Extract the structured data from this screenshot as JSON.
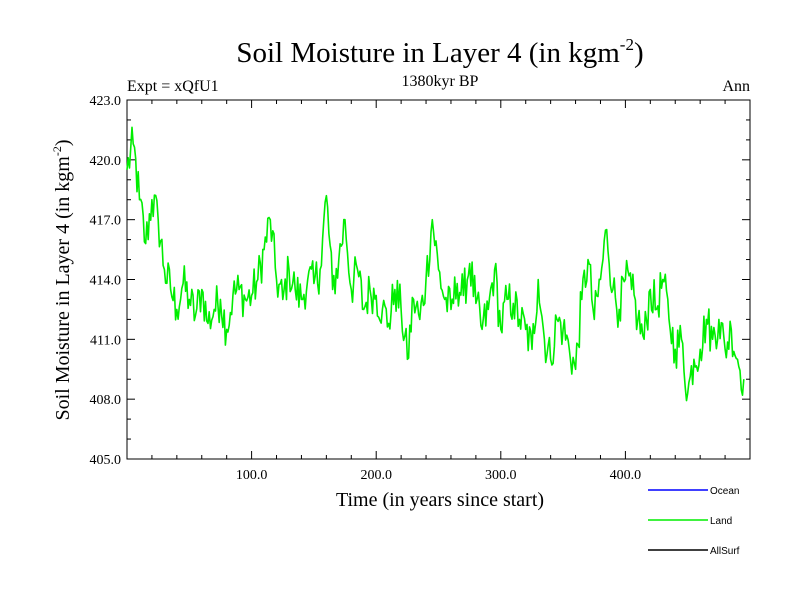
{
  "header": {
    "title": "Soil Moisture in Layer 4 (in kgm",
    "title_sup": "-2",
    "title_close": ")",
    "left": "Expt = xQfU1",
    "center": "1380kyr BP",
    "right": "Ann"
  },
  "chart_data": {
    "type": "line",
    "title": "Soil Moisture in Layer 4 (in kgm-2)",
    "xlabel": "Time (in years since start)",
    "ylabel": "Soil Moisture in Layer 4 (in kgm-2)",
    "ylabel_main": "Soil Moisture in Layer 4 (in kgm",
    "ylabel_sup": "-2",
    "ylabel_close": ")",
    "xlim": [
      0,
      500
    ],
    "ylim": [
      405,
      423
    ],
    "xticks": [
      100,
      200,
      300,
      400
    ],
    "xtick_labels": [
      "100.0",
      "200.0",
      "300.0",
      "400.0"
    ],
    "yticks": [
      405,
      408,
      411,
      414,
      417,
      420,
      423
    ],
    "ytick_labels": [
      "405.0",
      "408.0",
      "411.0",
      "414.0",
      "417.0",
      "420.0",
      "423.0"
    ],
    "legend": [
      {
        "name": "Ocean",
        "color": "#0000ff"
      },
      {
        "name": "Land",
        "color": "#00ee00"
      },
      {
        "name": "AllSurf",
        "color": "#000000"
      }
    ],
    "series": [
      {
        "name": "Land",
        "color": "#00ee00",
        "x": [
          0,
          5,
          10,
          15,
          20,
          25,
          30,
          35,
          40,
          45,
          50,
          55,
          60,
          65,
          70,
          75,
          80,
          85,
          90,
          95,
          100,
          105,
          110,
          115,
          120,
          125,
          130,
          135,
          140,
          145,
          150,
          155,
          160,
          165,
          170,
          175,
          180,
          185,
          190,
          195,
          200,
          205,
          210,
          215,
          220,
          225,
          230,
          235,
          240,
          245,
          250,
          255,
          260,
          265,
          270,
          275,
          280,
          285,
          290,
          295,
          300,
          305,
          310,
          315,
          320,
          325,
          330,
          335,
          340,
          345,
          350,
          355,
          360,
          365,
          370,
          375,
          380,
          385,
          390,
          395,
          400,
          405,
          410,
          415,
          420,
          425,
          430,
          435,
          440,
          445,
          450,
          455,
          460,
          465,
          470,
          475,
          480,
          485,
          490,
          495
        ],
        "values": [
          419.5,
          420.8,
          418.0,
          415.8,
          418.0,
          417.0,
          414.5,
          413.5,
          412.5,
          413.8,
          413.0,
          412.2,
          413.5,
          411.8,
          412.5,
          413.0,
          411.5,
          413.2,
          413.5,
          413.0,
          413.2,
          414.0,
          415.5,
          417.0,
          414.0,
          413.0,
          414.5,
          413.5,
          413.0,
          414.0,
          413.8,
          414.5,
          418.2,
          413.5,
          415.0,
          417.0,
          413.5,
          414.5,
          412.5,
          413.5,
          413.2,
          412.5,
          411.8,
          413.5,
          412.5,
          410.0,
          413.0,
          412.0,
          414.0,
          417.0,
          414.5,
          413.0,
          412.5,
          413.8,
          413.2,
          414.8,
          412.8,
          411.5,
          412.5,
          414.5,
          411.5,
          413.0,
          412.8,
          412.0,
          411.5,
          410.5,
          414.0,
          411.0,
          410.0,
          412.0,
          411.5,
          410.5,
          409.5,
          413.0,
          415.0,
          412.0,
          414.0,
          416.5,
          413.5,
          412.5,
          414.0,
          413.5,
          412.0,
          411.0,
          413.5,
          412.5,
          414.0,
          412.0,
          410.5,
          411.0,
          408.3,
          410.0,
          410.5,
          412.0,
          411.0,
          412.0,
          410.5,
          411.5,
          410.0,
          409.0
        ]
      }
    ]
  }
}
